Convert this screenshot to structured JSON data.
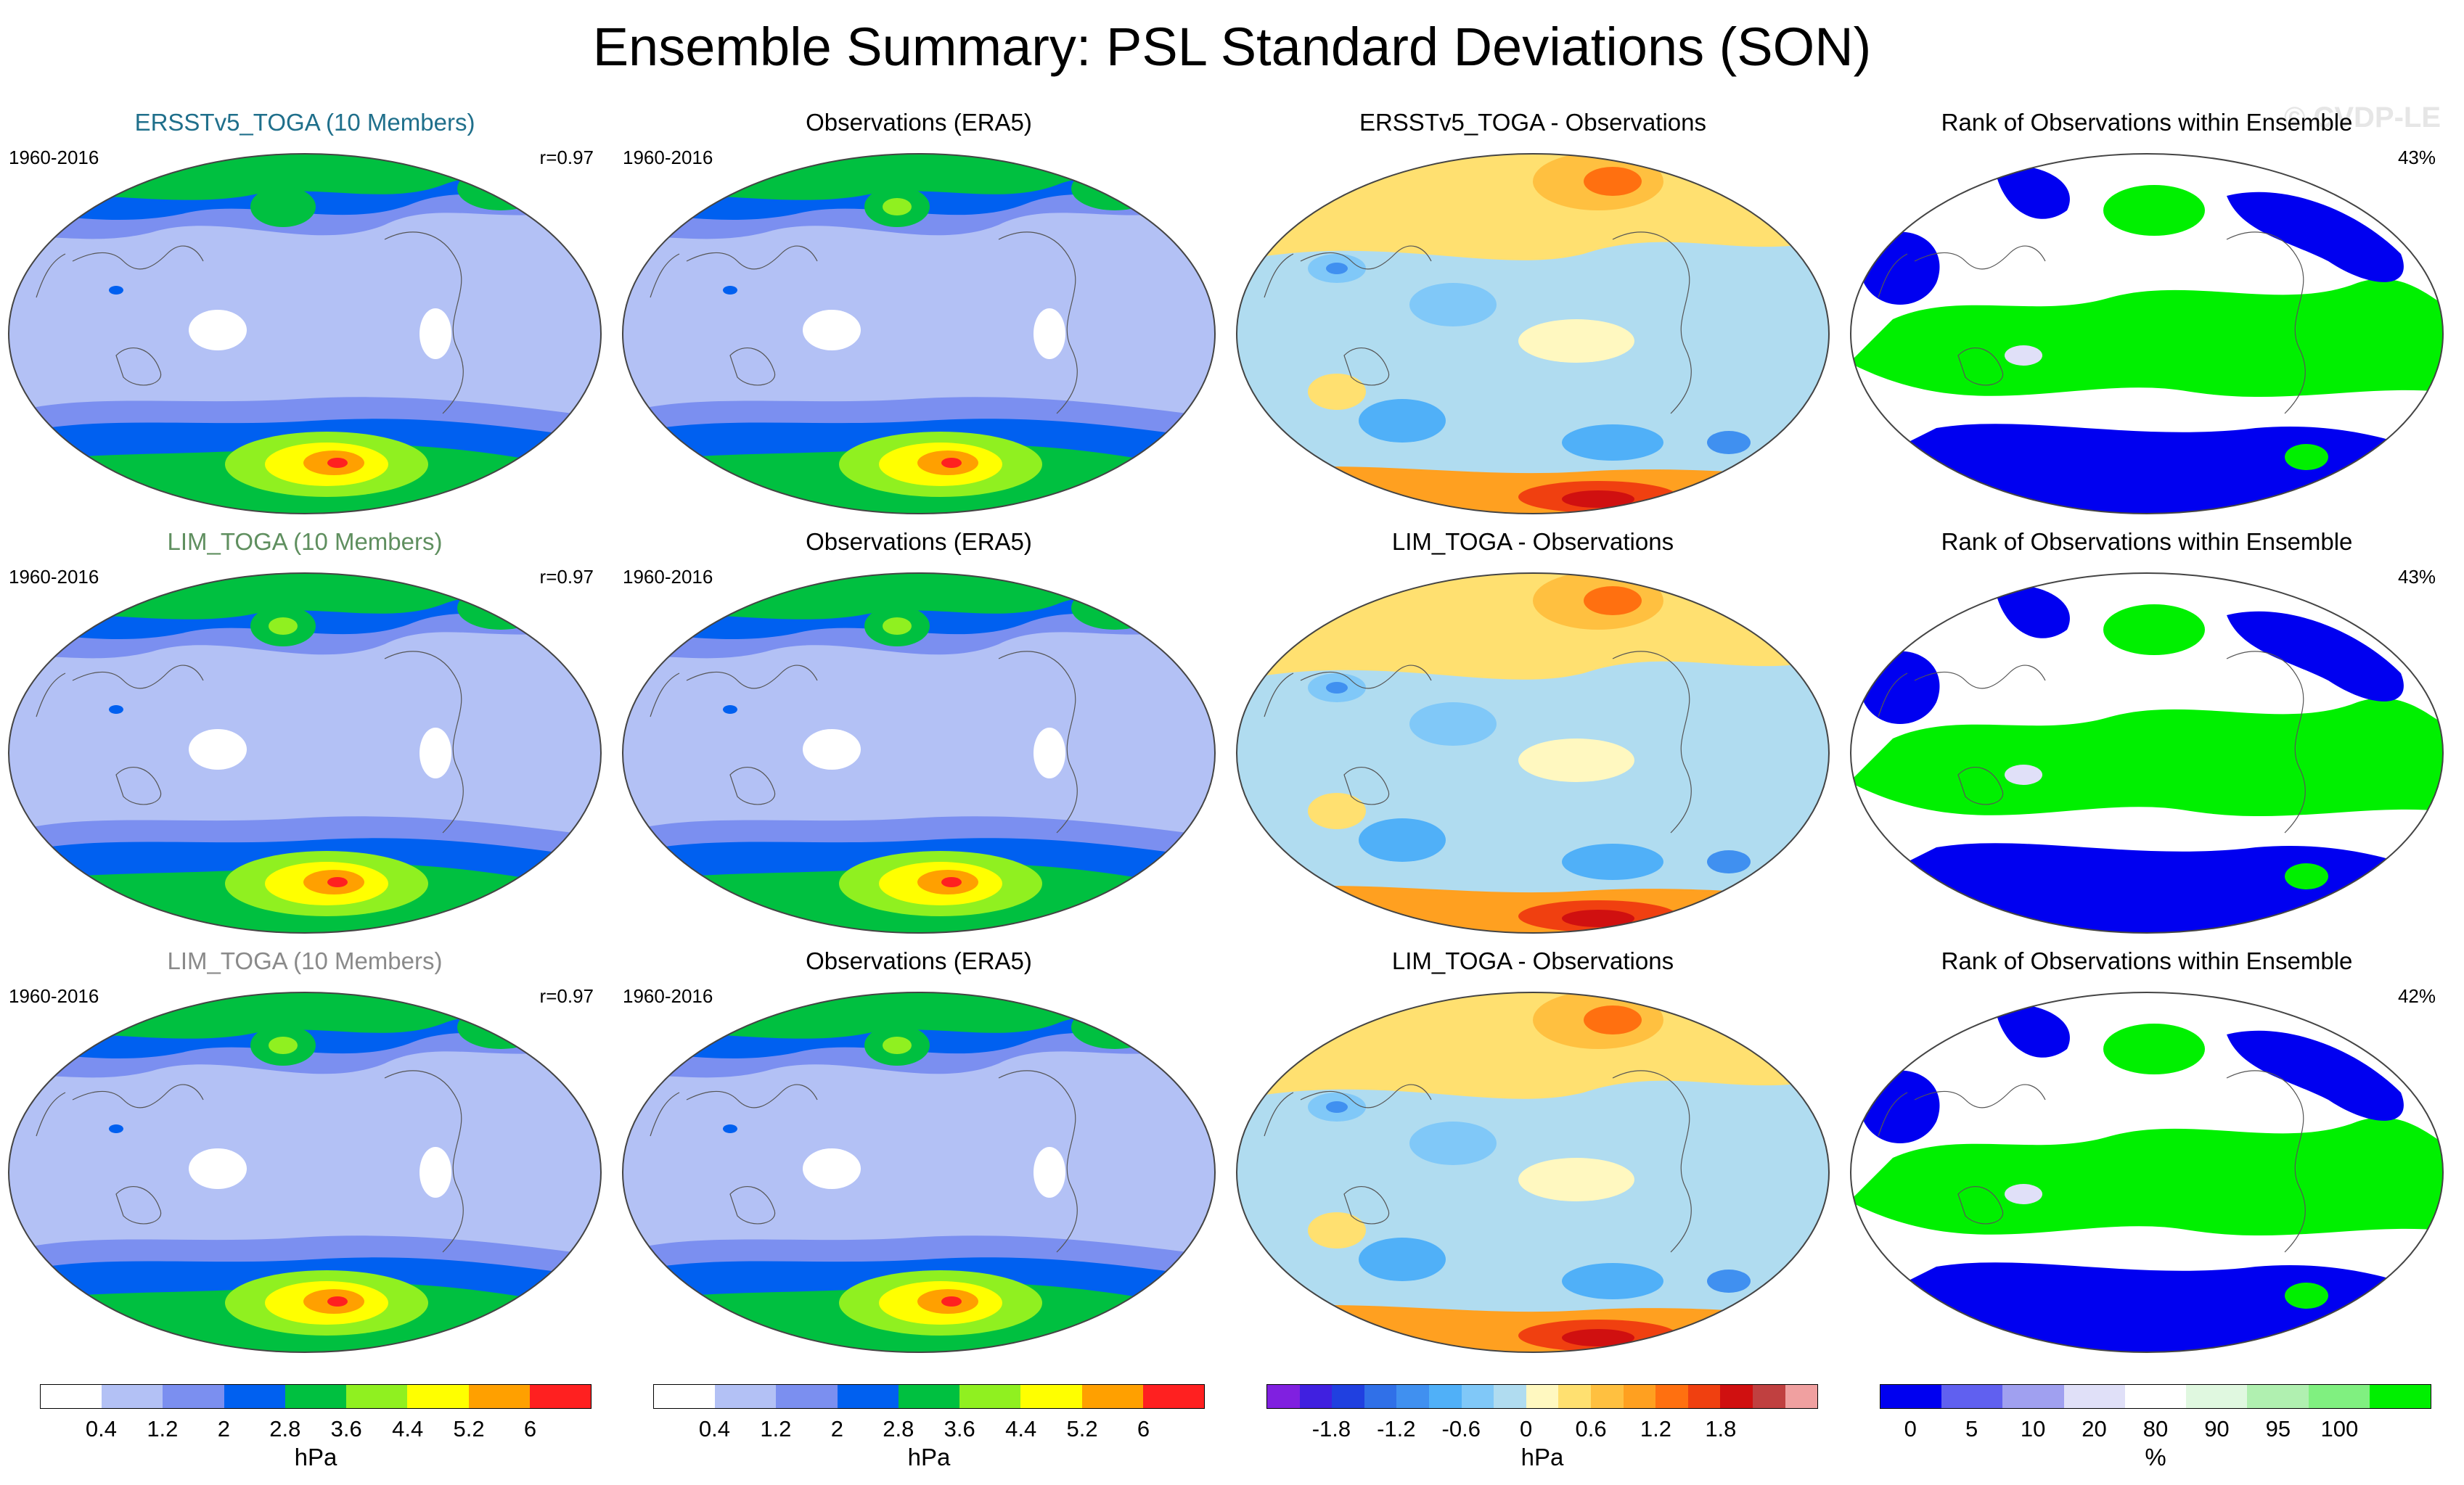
{
  "page": {
    "title": "Ensemble Summary: PSL Standard Deviations (SON)",
    "watermark": "© CVDP-LE"
  },
  "colors": {
    "std_levels": [
      "#ffffff",
      "#b3c1f5",
      "#7b8ff0",
      "#0060f0",
      "#00c040",
      "#90f020",
      "#ffff00",
      "#ffa000",
      "#ff2020"
    ],
    "diff_levels": [
      "#8020e0",
      "#4020e0",
      "#2040e0",
      "#3070e8",
      "#4090f0",
      "#50b0f8",
      "#80c8f8",
      "#b0dcf0",
      "#fff8c0",
      "#ffe070",
      "#ffc040",
      "#ffa020",
      "#ff7010",
      "#f04010",
      "#d01010",
      "#c04040",
      "#f0a0a0"
    ],
    "rank_levels": [
      "#0000f0",
      "#6060f0",
      "#a0a0f0",
      "#e0e0f8",
      "#ffffff",
      "#e0f8e0",
      "#b0f0b0",
      "#80f080",
      "#00f000"
    ]
  },
  "chart_data": [
    {
      "type": "heatmap",
      "title": "ERSSTv5_TOGA (10 Members)",
      "title_color": "#1f6f8b",
      "period": "1960-2016",
      "stat": "r=0.97",
      "colorbar": "std",
      "variant": "model1"
    },
    {
      "type": "heatmap",
      "title": "Observations (ERA5)",
      "title_color": "#000000",
      "period": "1960-2016",
      "stat": "",
      "colorbar": "std",
      "variant": "obs"
    },
    {
      "type": "heatmap",
      "title": "ERSSTv5_TOGA - Observations",
      "title_color": "#000000",
      "period": "",
      "stat": "",
      "colorbar": "diff",
      "variant": "diff1"
    },
    {
      "type": "heatmap",
      "title": "Rank of Observations within Ensemble",
      "title_color": "#000000",
      "period": "",
      "stat": "43%",
      "colorbar": "rank",
      "variant": "rank1"
    },
    {
      "type": "heatmap",
      "title": "LIM_TOGA (10 Members)",
      "title_color": "#5f8f5f",
      "period": "1960-2016",
      "stat": "r=0.97",
      "colorbar": "std",
      "variant": "model2"
    },
    {
      "type": "heatmap",
      "title": "Observations (ERA5)",
      "title_color": "#000000",
      "period": "1960-2016",
      "stat": "",
      "colorbar": "std",
      "variant": "obs"
    },
    {
      "type": "heatmap",
      "title": "LIM_TOGA - Observations",
      "title_color": "#000000",
      "period": "",
      "stat": "",
      "colorbar": "diff",
      "variant": "diff2"
    },
    {
      "type": "heatmap",
      "title": "Rank of Observations within Ensemble",
      "title_color": "#000000",
      "period": "",
      "stat": "43%",
      "colorbar": "rank",
      "variant": "rank2"
    },
    {
      "type": "heatmap",
      "title": "LIM_TOGA (10 Members)",
      "title_color": "#8a8a8a",
      "period": "1960-2016",
      "stat": "r=0.97",
      "colorbar": "std",
      "variant": "model3"
    },
    {
      "type": "heatmap",
      "title": "Observations (ERA5)",
      "title_color": "#000000",
      "period": "1960-2016",
      "stat": "",
      "colorbar": "std",
      "variant": "obs"
    },
    {
      "type": "heatmap",
      "title": "LIM_TOGA - Observations",
      "title_color": "#000000",
      "period": "",
      "stat": "",
      "colorbar": "diff",
      "variant": "diff3"
    },
    {
      "type": "heatmap",
      "title": "Rank of Observations within Ensemble",
      "title_color": "#000000",
      "period": "",
      "stat": "42%",
      "colorbar": "rank",
      "variant": "rank3"
    }
  ],
  "colorbars": [
    {
      "key": "std",
      "unit": "hPa",
      "labels": [
        "0.4",
        "1.2",
        "2",
        "2.8",
        "3.6",
        "4.4",
        "5.2",
        "6"
      ]
    },
    {
      "key": "std",
      "unit": "hPa",
      "labels": [
        "0.4",
        "1.2",
        "2",
        "2.8",
        "3.6",
        "4.4",
        "5.2",
        "6"
      ]
    },
    {
      "key": "diff",
      "unit": "hPa",
      "labels": [
        "-1.8",
        "-1.2",
        "-0.6",
        "0",
        "0.6",
        "1.2",
        "1.8"
      ]
    },
    {
      "key": "rank",
      "unit": "%",
      "labels": [
        "0",
        "5",
        "10",
        "20",
        "80",
        "90",
        "95",
        "100"
      ]
    }
  ]
}
